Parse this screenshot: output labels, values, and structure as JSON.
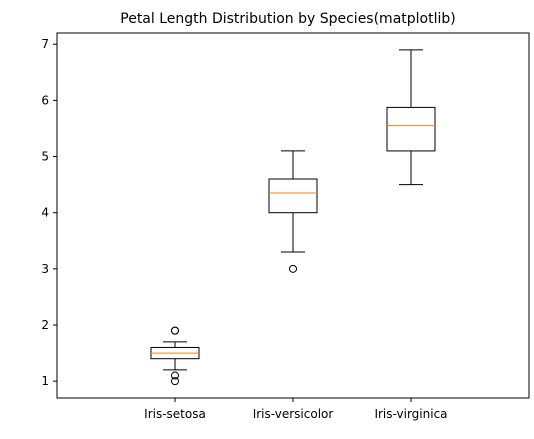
{
  "chart_data": {
    "type": "box",
    "title": "Petal Length Distribution by Species(matplotlib)",
    "xlabel": "",
    "ylabel": "",
    "categories": [
      "Iris-setosa",
      "Iris-versicolor",
      "Iris-virginica"
    ],
    "ylim": [
      0.7,
      7.2
    ],
    "yticks": [
      1,
      2,
      3,
      4,
      5,
      6,
      7
    ],
    "ytick_labels": [
      "1",
      "2",
      "3",
      "4",
      "5",
      "6",
      "7"
    ],
    "grid": false,
    "boxes": [
      {
        "category": "Iris-setosa",
        "whisker_low": 1.2,
        "q1": 1.4,
        "median": 1.5,
        "q3": 1.6,
        "whisker_high": 1.7,
        "outliers": [
          1.9,
          1.9,
          1.1,
          1.0
        ]
      },
      {
        "category": "Iris-versicolor",
        "whisker_low": 3.3,
        "q1": 4.0,
        "median": 4.35,
        "q3": 4.6,
        "whisker_high": 5.1,
        "outliers": [
          3.0
        ]
      },
      {
        "category": "Iris-virginica",
        "whisker_low": 4.5,
        "q1": 5.1,
        "median": 5.55,
        "q3": 5.875,
        "whisker_high": 6.9,
        "outliers": []
      }
    ],
    "colors": {
      "box": "#000000",
      "median": "#ff7f0e",
      "outlier": "#000000",
      "axes": "#000000",
      "background": "#ffffff"
    }
  }
}
